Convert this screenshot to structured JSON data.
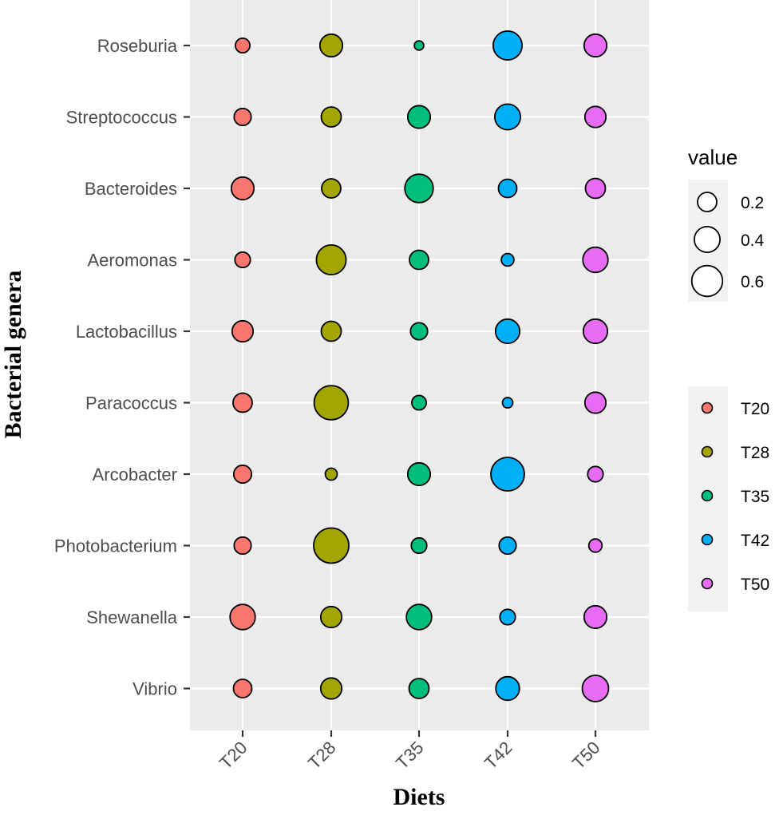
{
  "chart_data": {
    "type": "scatter",
    "xlabel": "Diets",
    "ylabel": "Bacterial genera",
    "categories_x": [
      "T20",
      "T28",
      "T35",
      "T42",
      "T50"
    ],
    "categories_y": [
      "Roseburia",
      "Streptococcus",
      "Bacteroides",
      "Aeromonas",
      "Lactobacillus",
      "Paracoccus",
      "Arcobacter",
      "Photobacterium",
      "Shewanella",
      "Vibrio"
    ],
    "colors": {
      "T20": "#F8766D",
      "T28": "#A3A500",
      "T35": "#00BF7D",
      "T42": "#00B0F6",
      "T50": "#E76BF3"
    },
    "points": [
      {
        "genus": "Roseburia",
        "values": [
          0.1,
          0.3,
          0.03,
          0.52,
          0.3
        ]
      },
      {
        "genus": "Streptococcus",
        "values": [
          0.15,
          0.22,
          0.3,
          0.4,
          0.25
        ]
      },
      {
        "genus": "Bacteroides",
        "values": [
          0.3,
          0.2,
          0.5,
          0.18,
          0.22
        ]
      },
      {
        "genus": "Aeromonas",
        "values": [
          0.12,
          0.55,
          0.2,
          0.07,
          0.38
        ]
      },
      {
        "genus": "Lactobacillus",
        "values": [
          0.25,
          0.22,
          0.15,
          0.35,
          0.35
        ]
      },
      {
        "genus": "Paracoccus",
        "values": [
          0.2,
          0.75,
          0.1,
          0.04,
          0.25
        ]
      },
      {
        "genus": "Arcobacter",
        "values": [
          0.17,
          0.06,
          0.3,
          0.72,
          0.12
        ]
      },
      {
        "genus": "Photobacterium",
        "values": [
          0.15,
          0.8,
          0.12,
          0.15,
          0.08
        ]
      },
      {
        "genus": "Shewanella",
        "values": [
          0.38,
          0.25,
          0.38,
          0.12,
          0.3
        ]
      },
      {
        "genus": "Vibrio",
        "values": [
          0.18,
          0.25,
          0.22,
          0.33,
          0.42
        ]
      }
    ],
    "size_legend": {
      "title": "value",
      "values": [
        0.2,
        0.4,
        0.6
      ],
      "labels": [
        "0.2",
        "0.4",
        "0.6"
      ]
    },
    "fill_legend": [
      "T20",
      "T28",
      "T35",
      "T42",
      "T50"
    ]
  }
}
